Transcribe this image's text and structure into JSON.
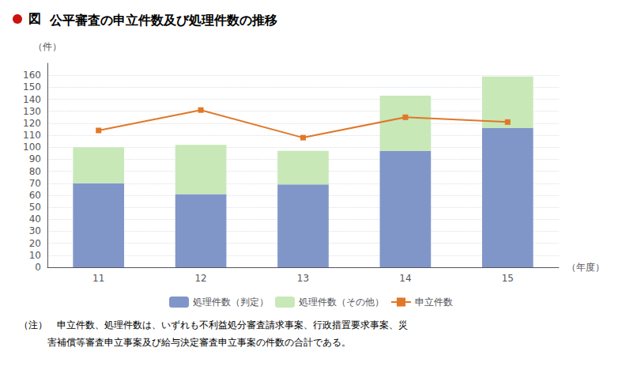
{
  "chart_data": {
    "type": "bar",
    "title": "公平審査の申立件数及び処理件数の推移",
    "annotations": [
      "図",
      "（注）　申立件数、処理件数は、いずれも不利益処分審査請求事案、行政措置要求事案、災",
      "　　　害補償等審査申立事案及び給与決定審査申立事案の件数の合計である。"
    ],
    "xlabel": "（年度）",
    "ylabel": "（件）",
    "categories": [
      "11",
      "12",
      "13",
      "14",
      "15"
    ],
    "series": [
      {
        "name": "処理件数（判定）",
        "type": "bar",
        "color": "#8196c8",
        "values": [
          70,
          61,
          69,
          97,
          116
        ]
      },
      {
        "name": "処理件数（その他）",
        "type": "bar",
        "color": "#c8e8b8",
        "values": [
          30,
          41,
          28,
          46,
          43
        ]
      },
      {
        "name": "申立件数",
        "type": "line",
        "color": "#e07828",
        "marker": "square",
        "values": [
          114,
          131,
          108,
          125,
          121
        ]
      }
    ],
    "stacked": true,
    "ylim": [
      0,
      170
    ],
    "yticks": [
      0,
      10,
      20,
      30,
      40,
      50,
      60,
      70,
      80,
      90,
      100,
      110,
      120,
      130,
      140,
      150,
      160
    ],
    "grid": true,
    "legend": "bottom"
  }
}
